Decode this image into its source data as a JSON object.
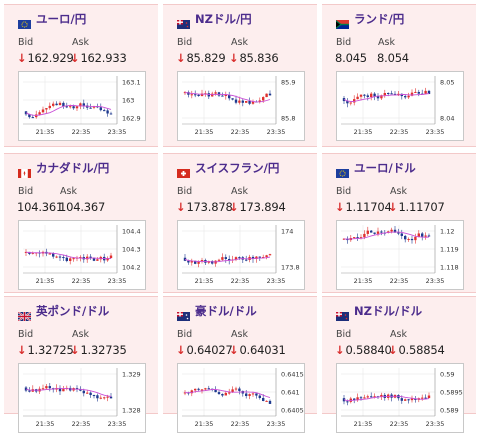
{
  "bid_label": "Bid",
  "ask_label": "Ask",
  "colors": {
    "up": "#e0312f",
    "down": "#1f3a8f",
    "ma": "#c94fd6",
    "title": "#4c2c8c",
    "arrow_down": "#d9302f"
  },
  "cards": [
    {
      "title": "ユーロ/円",
      "flag": "eu-flag-icon",
      "bid": "162.929",
      "ask": "162.933",
      "bid_arrow": "↓",
      "ask_arrow": "↓",
      "y_ticks": [
        "163.1",
        "163",
        "162.9"
      ],
      "x_ticks": [
        "21:35",
        "22:35",
        "23:35"
      ]
    },
    {
      "title": "NZドル/円",
      "flag": "nz-flag-icon",
      "bid": "85.829",
      "ask": "85.836",
      "bid_arrow": "↓",
      "ask_arrow": "↓",
      "y_ticks": [
        "85.9",
        "85.8"
      ],
      "x_ticks": [
        "21:35",
        "22:35",
        "23:35"
      ]
    },
    {
      "title": "ランド/円",
      "flag": "za-flag-icon",
      "bid": "8.045",
      "ask": "8.054",
      "bid_arrow": "",
      "ask_arrow": "",
      "y_ticks": [
        "8.05",
        "8.04"
      ],
      "x_ticks": [
        "21:35",
        "22:35",
        "23:35"
      ]
    },
    {
      "title": "カナダドル/円",
      "flag": "ca-flag-icon",
      "bid": "104.361",
      "ask": "104.367",
      "bid_arrow": "",
      "ask_arrow": "",
      "y_ticks": [
        "104.4",
        "104.3",
        "104.2"
      ],
      "x_ticks": [
        "21:35",
        "22:35",
        "23:35"
      ]
    },
    {
      "title": "スイスフラン/円",
      "flag": "ch-flag-icon",
      "bid": "173.878",
      "ask": "173.894",
      "bid_arrow": "↓",
      "ask_arrow": "↓",
      "y_ticks": [
        "174",
        "173.8"
      ],
      "x_ticks": [
        "21:35",
        "22:35",
        "23:35"
      ]
    },
    {
      "title": "ユーロ/ドル",
      "flag": "eu-flag-icon",
      "bid": "1.11704",
      "ask": "1.11707",
      "bid_arrow": "↓",
      "ask_arrow": "↓",
      "y_ticks": [
        "1.12",
        "1.119",
        "1.118"
      ],
      "x_ticks": [
        "21:35",
        "22:35",
        "23:35"
      ]
    },
    {
      "title": "英ポンド/ドル",
      "flag": "gb-flag-icon",
      "bid": "1.32725",
      "ask": "1.32735",
      "bid_arrow": "↓",
      "ask_arrow": "↓",
      "y_ticks": [
        "1.329",
        "1.328"
      ],
      "x_ticks": [
        "21:35",
        "22:35",
        "23:35"
      ]
    },
    {
      "title": "豪ドル/ドル",
      "flag": "au-flag-icon",
      "bid": "0.64027",
      "ask": "0.64031",
      "bid_arrow": "↓",
      "ask_arrow": "↓",
      "y_ticks": [
        "0.6415",
        "0.641",
        "0.6405"
      ],
      "x_ticks": [
        "21:35",
        "22:35",
        "23:35"
      ]
    },
    {
      "title": "NZドル/ドル",
      "flag": "nz-flag-icon",
      "bid": "0.58840",
      "ask": "0.58854",
      "bid_arrow": "↓",
      "ask_arrow": "↓",
      "y_ticks": [
        "0.59",
        "0.5895",
        "0.589"
      ],
      "x_ticks": [
        "21:35",
        "22:35",
        "23:35"
      ]
    }
  ]
}
